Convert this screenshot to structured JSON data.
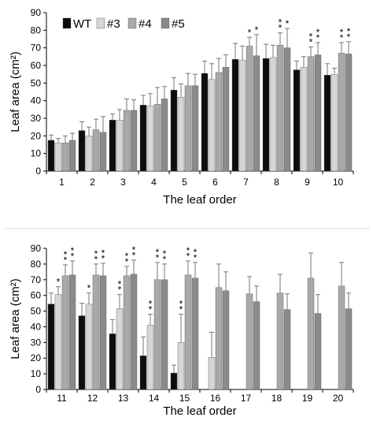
{
  "colors": {
    "WT": "#0d0d0d",
    "#3": "#d6d6d6",
    "#4": "#a9a9a9",
    "#5": "#8a8a8a",
    "error_bar": "#777777",
    "axis": "#000000"
  },
  "chart_data": [
    {
      "type": "bar",
      "xlabel": "The leaf order",
      "ylabel": "Leaf area (cm²)",
      "ylim": [
        0,
        90
      ],
      "yticks": [
        0,
        10,
        20,
        30,
        40,
        50,
        60,
        70,
        80,
        90
      ],
      "grid": false,
      "legend": "top-left",
      "categories": [
        "1",
        "2",
        "3",
        "4",
        "5",
        "6",
        "7",
        "8",
        "9",
        "10"
      ],
      "series": [
        {
          "name": "WT",
          "values": [
            17.5,
            23,
            29,
            37.5,
            46,
            55.5,
            63.5,
            64,
            57.5,
            54.5
          ],
          "errors": [
            3,
            5,
            3.5,
            5.5,
            7,
            7,
            9,
            8,
            5,
            6.5
          ]
        },
        {
          "name": "#3",
          "values": [
            16,
            20,
            29,
            37,
            42,
            52,
            63,
            64.5,
            59,
            55
          ],
          "errors": [
            2.5,
            5,
            6,
            7,
            7.5,
            9,
            8,
            7,
            6,
            3.5
          ]
        },
        {
          "name": "#4",
          "values": [
            16,
            23.5,
            34.5,
            38,
            48.5,
            56,
            71,
            71.5,
            65,
            67
          ],
          "errors": [
            4,
            6,
            6.5,
            9.5,
            7,
            8,
            5,
            7,
            5.5,
            6
          ]
        },
        {
          "name": "#5",
          "values": [
            17.5,
            22,
            34.5,
            41,
            48.5,
            59,
            65.5,
            70,
            66,
            66.5
          ],
          "errors": [
            4,
            9,
            6,
            7,
            6.5,
            7,
            12,
            11,
            7,
            7
          ]
        }
      ],
      "annotations": [
        {
          "category": "7",
          "series": "#4",
          "text": "*"
        },
        {
          "category": "7",
          "series": "#5",
          "text": "*"
        },
        {
          "category": "8",
          "series": "#4",
          "text": "**"
        },
        {
          "category": "8",
          "series": "#5",
          "text": "*"
        },
        {
          "category": "9",
          "series": "#4",
          "text": "**"
        },
        {
          "category": "9",
          "series": "#5",
          "text": "**"
        },
        {
          "category": "10",
          "series": "#4",
          "text": "**"
        },
        {
          "category": "10",
          "series": "#5",
          "text": "**"
        }
      ]
    },
    {
      "type": "bar",
      "xlabel": "The leaf order",
      "ylabel": "Leaf area (cm²)",
      "ylim": [
        0,
        90
      ],
      "yticks": [
        0,
        10,
        20,
        30,
        40,
        50,
        60,
        70,
        80,
        90
      ],
      "grid": false,
      "categories": [
        "11",
        "12",
        "13",
        "14",
        "15",
        "16",
        "17",
        "18",
        "19",
        "20"
      ],
      "series": [
        {
          "name": "WT",
          "values": [
            54.5,
            47,
            35.5,
            21.5,
            10.5,
            null,
            null,
            null,
            null,
            null
          ],
          "errors": [
            7,
            8,
            9,
            12,
            5,
            null,
            null,
            null,
            null,
            null
          ]
        },
        {
          "name": "#3",
          "values": [
            60.5,
            54.5,
            51.5,
            41,
            30,
            20.5,
            null,
            null,
            null,
            null
          ],
          "errors": [
            5,
            7,
            9,
            7,
            18,
            16,
            null,
            null,
            null,
            null
          ]
        },
        {
          "name": "#4",
          "values": [
            72.5,
            73,
            72.5,
            70,
            73,
            65,
            61,
            61.5,
            71,
            66
          ],
          "errors": [
            7,
            7,
            6,
            11,
            9,
            15,
            11,
            12,
            16,
            15
          ]
        },
        {
          "name": "#5",
          "values": [
            73,
            72.5,
            73.5,
            70,
            71,
            63,
            56,
            51,
            48.5,
            51.5
          ],
          "errors": [
            9,
            8,
            9,
            10,
            10,
            12,
            10,
            10,
            12,
            10
          ]
        }
      ],
      "annotations": [
        {
          "category": "11",
          "series": "#3",
          "text": "*"
        },
        {
          "category": "11",
          "series": "#4",
          "text": "**"
        },
        {
          "category": "11",
          "series": "#5",
          "text": "**"
        },
        {
          "category": "12",
          "series": "#3",
          "text": "*"
        },
        {
          "category": "12",
          "series": "#4",
          "text": "**"
        },
        {
          "category": "12",
          "series": "#5",
          "text": "**"
        },
        {
          "category": "13",
          "series": "#3",
          "text": "**"
        },
        {
          "category": "13",
          "series": "#4",
          "text": "**"
        },
        {
          "category": "13",
          "series": "#5",
          "text": "**"
        },
        {
          "category": "14",
          "series": "#3",
          "text": "**"
        },
        {
          "category": "14",
          "series": "#4",
          "text": "**"
        },
        {
          "category": "14",
          "series": "#5",
          "text": "**"
        },
        {
          "category": "15",
          "series": "#3",
          "text": "**"
        },
        {
          "category": "15",
          "series": "#4",
          "text": "**"
        },
        {
          "category": "15",
          "series": "#5",
          "text": "**"
        }
      ]
    }
  ]
}
